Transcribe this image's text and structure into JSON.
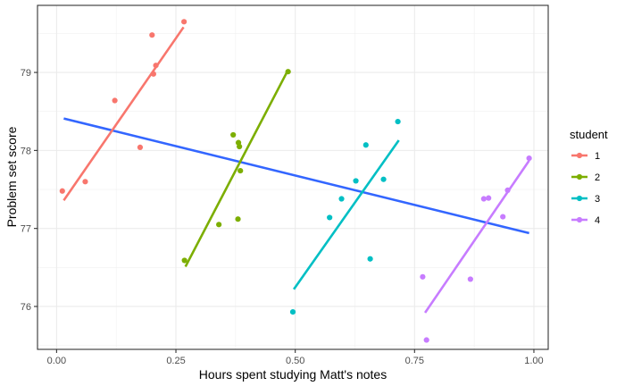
{
  "chart_data": {
    "type": "scatter",
    "xlabel": "Hours spent studying Matt's notes",
    "ylabel": "Problem set score",
    "xlim": [
      -0.04,
      1.03
    ],
    "ylim": [
      75.45,
      79.86
    ],
    "x_ticks": [
      0.0,
      0.25,
      0.5,
      0.75,
      1.0
    ],
    "x_tick_labels": [
      "0.00",
      "0.25",
      "0.50",
      "0.75",
      "1.00"
    ],
    "y_ticks": [
      76,
      77,
      78,
      79
    ],
    "y_tick_labels": [
      "76",
      "77",
      "78",
      "79"
    ],
    "grid": true,
    "legend": {
      "title": "student",
      "position": "right"
    },
    "series": [
      {
        "name": "1",
        "color": "#F8766D",
        "points": [
          [
            0.012,
            77.48
          ],
          [
            0.06,
            77.6
          ],
          [
            0.122,
            78.64
          ],
          [
            0.175,
            78.04
          ],
          [
            0.2,
            79.48
          ],
          [
            0.203,
            78.98
          ],
          [
            0.208,
            79.09
          ],
          [
            0.267,
            79.65
          ]
        ],
        "fit": [
          [
            0.015,
            77.36
          ],
          [
            0.266,
            79.58
          ]
        ]
      },
      {
        "name": "2",
        "color": "#7CAE00",
        "points": [
          [
            0.268,
            76.59
          ],
          [
            0.34,
            77.05
          ],
          [
            0.37,
            78.2
          ],
          [
            0.38,
            77.12
          ],
          [
            0.381,
            78.1
          ],
          [
            0.383,
            78.05
          ],
          [
            0.385,
            77.74
          ],
          [
            0.485,
            79.01
          ]
        ],
        "fit": [
          [
            0.27,
            76.51
          ],
          [
            0.484,
            79.02
          ]
        ]
      },
      {
        "name": "3",
        "color": "#00BFC4",
        "points": [
          [
            0.495,
            75.93
          ],
          [
            0.572,
            77.14
          ],
          [
            0.597,
            77.38
          ],
          [
            0.627,
            77.61
          ],
          [
            0.648,
            78.07
          ],
          [
            0.657,
            76.61
          ],
          [
            0.685,
            77.63
          ],
          [
            0.715,
            78.37
          ]
        ],
        "fit": [
          [
            0.497,
            76.22
          ],
          [
            0.717,
            78.13
          ]
        ]
      },
      {
        "name": "4",
        "color": "#C77CFF",
        "points": [
          [
            0.767,
            76.38
          ],
          [
            0.775,
            75.57
          ],
          [
            0.867,
            76.35
          ],
          [
            0.895,
            77.38
          ],
          [
            0.905,
            77.39
          ],
          [
            0.935,
            77.15
          ],
          [
            0.945,
            77.49
          ],
          [
            0.99,
            77.9
          ]
        ],
        "fit": [
          [
            0.772,
            75.92
          ],
          [
            0.99,
            77.87
          ]
        ]
      }
    ],
    "overall_fit": {
      "color": "#3366FF",
      "points": [
        [
          0.015,
          78.41
        ],
        [
          0.99,
          76.94
        ]
      ]
    }
  }
}
